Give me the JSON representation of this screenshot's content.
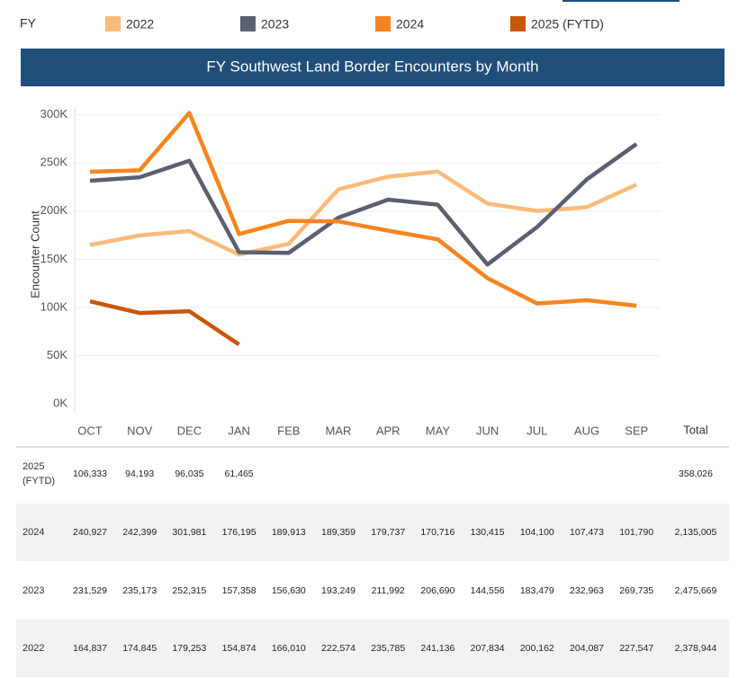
{
  "chart_data": {
    "type": "line",
    "legend_title": "FY",
    "title": "FY Southwest Land Border Encounters by Month",
    "y_label": "Encounter Count",
    "categories": [
      "OCT",
      "NOV",
      "DEC",
      "JAN",
      "FEB",
      "MAR",
      "APR",
      "MAY",
      "JUN",
      "JUL",
      "AUG",
      "SEP"
    ],
    "total_header": "Total",
    "ylim": [
      0,
      310000
    ],
    "yticks": [
      {
        "value": 0,
        "label": "0K"
      },
      {
        "value": 50000,
        "label": "50K"
      },
      {
        "value": 100000,
        "label": "100K"
      },
      {
        "value": 150000,
        "label": "150K"
      },
      {
        "value": 200000,
        "label": "200K"
      },
      {
        "value": 250000,
        "label": "250K"
      },
      {
        "value": 300000,
        "label": "300K"
      }
    ],
    "grid": true,
    "series": [
      {
        "name": "2022",
        "color": "#f9bb7a",
        "values": [
          164837,
          174845,
          179253,
          154874,
          166010,
          222574,
          235785,
          241136,
          207834,
          200162,
          204087,
          227547
        ],
        "value_labels": [
          "164,837",
          "174,845",
          "179,253",
          "154,874",
          "166,010",
          "222,574",
          "235,785",
          "241,136",
          "207,834",
          "200,162",
          "204,087",
          "227,547"
        ],
        "total": "2,378,944"
      },
      {
        "name": "2023",
        "color": "#5a6070",
        "values": [
          231529,
          235173,
          252315,
          157358,
          156630,
          193249,
          211992,
          206690,
          144556,
          183479,
          232963,
          269735
        ],
        "value_labels": [
          "231,529",
          "235,173",
          "252,315",
          "157,358",
          "156,630",
          "193,249",
          "211,992",
          "206,690",
          "144,556",
          "183,479",
          "232,963",
          "269,735"
        ],
        "total": "2,475,669"
      },
      {
        "name": "2024",
        "color": "#f7841e",
        "values": [
          240927,
          242399,
          301981,
          176195,
          189913,
          189359,
          179737,
          170716,
          130415,
          104100,
          107473,
          101790
        ],
        "value_labels": [
          "240,927",
          "242,399",
          "301,981",
          "176,195",
          "189,913",
          "189,359",
          "179,737",
          "170,716",
          "130,415",
          "104,100",
          "107,473",
          "101,790"
        ],
        "total": "2,135,005"
      },
      {
        "name": "2025 (FYTD)",
        "color": "#c8560a",
        "values": [
          106333,
          94193,
          96035,
          61465,
          null,
          null,
          null,
          null,
          null,
          null,
          null,
          null
        ],
        "value_labels": [
          "106,333",
          "94,193",
          "96,035",
          "61,465",
          null,
          null,
          null,
          null,
          null,
          null,
          null,
          null
        ],
        "total": "358,026"
      }
    ]
  }
}
